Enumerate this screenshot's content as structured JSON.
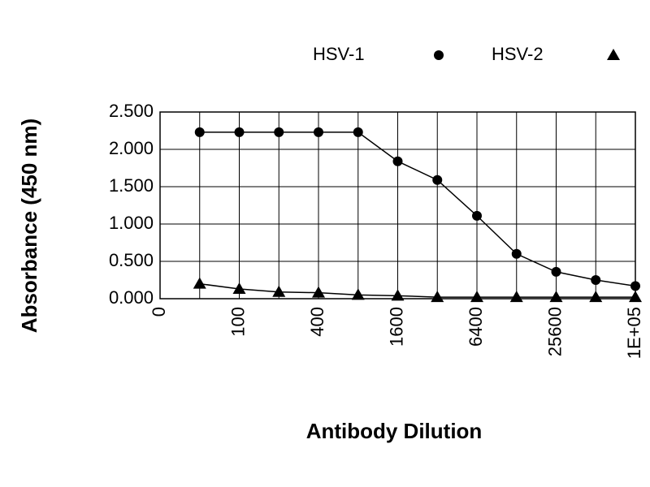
{
  "chart_data": {
    "type": "line",
    "x_label": "Antibody Dilution",
    "y_label": "Absorbance (450 nm)",
    "categories": [
      "0",
      null,
      "100",
      null,
      "400",
      null,
      "1600",
      null,
      "6400",
      null,
      "25600",
      null,
      "1E+05"
    ],
    "series": [
      {
        "name": "HSV-1",
        "color": "#000000",
        "marker": "circle",
        "values": [
          null,
          2.23,
          2.23,
          2.23,
          2.23,
          2.23,
          1.84,
          1.59,
          1.11,
          0.6,
          0.36,
          0.25,
          0.17
        ]
      },
      {
        "name": "HSV-2",
        "color": "#000000",
        "marker": "triangle",
        "values": [
          null,
          0.2,
          0.13,
          0.09,
          0.08,
          0.05,
          0.04,
          0.02,
          0.02,
          0.02,
          0.02,
          0.02,
          0.02
        ]
      }
    ],
    "ylim": [
      0,
      2.5
    ],
    "yticks": [
      {
        "value": 0,
        "label": "0.000"
      },
      {
        "value": 0.5,
        "label": "0.500"
      },
      {
        "value": 1,
        "label": "1.000"
      },
      {
        "value": 1.5,
        "label": "1.500"
      },
      {
        "value": 2,
        "label": "2.000"
      },
      {
        "value": 2.5,
        "label": "2.500"
      }
    ],
    "grid": true,
    "legend": "top-right"
  }
}
